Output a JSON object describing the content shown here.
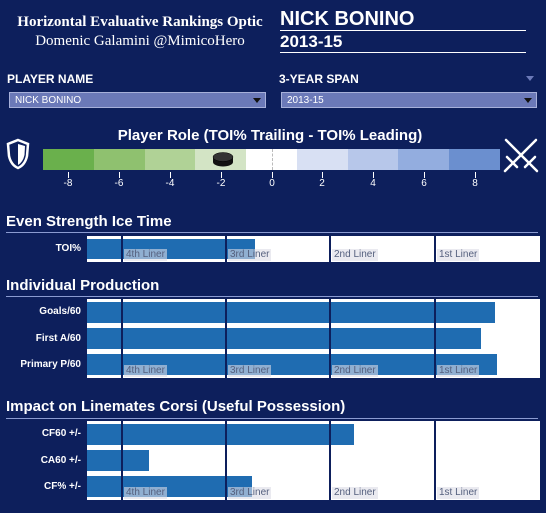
{
  "header": {
    "title": "Horizontal Evaluative Rankings Optic",
    "subtitle": "Domenic Galamini @MimicoHero",
    "player": "NICK BONINO",
    "span": "2013-15"
  },
  "controls": {
    "player_label": "PLAYER NAME",
    "player_value": "NICK BONINO",
    "span_label": "3-YEAR SPAN",
    "span_value": "2013-15"
  },
  "player_role": {
    "title": "Player Role (TOI% Trailing - TOI% Leading)",
    "value": -1.9,
    "scale_min": -9,
    "scale_max": 9,
    "tick_labels": [
      "-8",
      "-6",
      "-4",
      "-2",
      "0",
      "2",
      "4",
      "6",
      "8"
    ],
    "colors": [
      "#6ab04c",
      "#8fc16f",
      "#b0d296",
      "#d3e4c5",
      "#ffffff",
      "#d8e0f3",
      "#b7c7ea",
      "#93addf",
      "#6b8fcf"
    ]
  },
  "tiers": [
    "4th Liner",
    "3rd Liner",
    "2nd Liner",
    "1st Liner"
  ],
  "sections": [
    {
      "title": "Even Strength Ice Time",
      "rows": [
        {
          "label": "TOI%",
          "value": 0.37
        }
      ]
    },
    {
      "title": "Individual Production",
      "rows": [
        {
          "label": "Goals/60",
          "value": 0.9
        },
        {
          "label": "First A/60",
          "value": 0.87
        },
        {
          "label": "Primary P/60",
          "value": 0.905
        }
      ]
    },
    {
      "title": "Impact on Linemates Corsi (Useful Possession)",
      "rows": [
        {
          "label": "CF60 +/-",
          "value": 0.59
        },
        {
          "label": "CA60 +/-",
          "value": 0.137
        },
        {
          "label": "CF% +/-",
          "value": 0.365
        }
      ]
    }
  ]
}
